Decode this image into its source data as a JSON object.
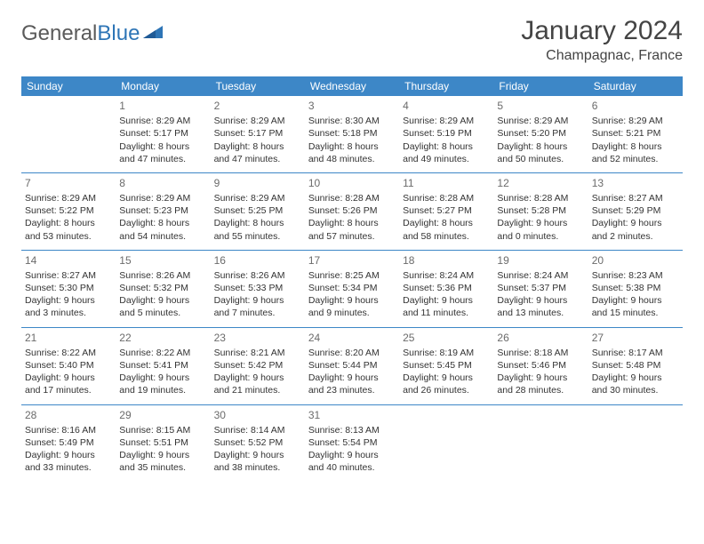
{
  "logo": {
    "part1": "General",
    "part2": "Blue"
  },
  "title": "January 2024",
  "location": "Champagnac, France",
  "colors": {
    "header_bg": "#3d87c7",
    "header_text": "#ffffff",
    "row_border": "#3d87c7",
    "body_text": "#333333",
    "daynum_text": "#6b6b6b",
    "logo_gray": "#5a5a5a",
    "logo_blue": "#2e75b6",
    "background": "#ffffff"
  },
  "typography": {
    "title_fontsize": 30,
    "location_fontsize": 16,
    "header_fontsize": 12,
    "cell_fontsize": 10.5,
    "daynum_fontsize": 12
  },
  "day_headers": [
    "Sunday",
    "Monday",
    "Tuesday",
    "Wednesday",
    "Thursday",
    "Friday",
    "Saturday"
  ],
  "weeks": [
    [
      {
        "num": "",
        "sunrise": "",
        "sunset": "",
        "daylight1": "",
        "daylight2": ""
      },
      {
        "num": "1",
        "sunrise": "Sunrise: 8:29 AM",
        "sunset": "Sunset: 5:17 PM",
        "daylight1": "Daylight: 8 hours",
        "daylight2": "and 47 minutes."
      },
      {
        "num": "2",
        "sunrise": "Sunrise: 8:29 AM",
        "sunset": "Sunset: 5:17 PM",
        "daylight1": "Daylight: 8 hours",
        "daylight2": "and 47 minutes."
      },
      {
        "num": "3",
        "sunrise": "Sunrise: 8:30 AM",
        "sunset": "Sunset: 5:18 PM",
        "daylight1": "Daylight: 8 hours",
        "daylight2": "and 48 minutes."
      },
      {
        "num": "4",
        "sunrise": "Sunrise: 8:29 AM",
        "sunset": "Sunset: 5:19 PM",
        "daylight1": "Daylight: 8 hours",
        "daylight2": "and 49 minutes."
      },
      {
        "num": "5",
        "sunrise": "Sunrise: 8:29 AM",
        "sunset": "Sunset: 5:20 PM",
        "daylight1": "Daylight: 8 hours",
        "daylight2": "and 50 minutes."
      },
      {
        "num": "6",
        "sunrise": "Sunrise: 8:29 AM",
        "sunset": "Sunset: 5:21 PM",
        "daylight1": "Daylight: 8 hours",
        "daylight2": "and 52 minutes."
      }
    ],
    [
      {
        "num": "7",
        "sunrise": "Sunrise: 8:29 AM",
        "sunset": "Sunset: 5:22 PM",
        "daylight1": "Daylight: 8 hours",
        "daylight2": "and 53 minutes."
      },
      {
        "num": "8",
        "sunrise": "Sunrise: 8:29 AM",
        "sunset": "Sunset: 5:23 PM",
        "daylight1": "Daylight: 8 hours",
        "daylight2": "and 54 minutes."
      },
      {
        "num": "9",
        "sunrise": "Sunrise: 8:29 AM",
        "sunset": "Sunset: 5:25 PM",
        "daylight1": "Daylight: 8 hours",
        "daylight2": "and 55 minutes."
      },
      {
        "num": "10",
        "sunrise": "Sunrise: 8:28 AM",
        "sunset": "Sunset: 5:26 PM",
        "daylight1": "Daylight: 8 hours",
        "daylight2": "and 57 minutes."
      },
      {
        "num": "11",
        "sunrise": "Sunrise: 8:28 AM",
        "sunset": "Sunset: 5:27 PM",
        "daylight1": "Daylight: 8 hours",
        "daylight2": "and 58 minutes."
      },
      {
        "num": "12",
        "sunrise": "Sunrise: 8:28 AM",
        "sunset": "Sunset: 5:28 PM",
        "daylight1": "Daylight: 9 hours",
        "daylight2": "and 0 minutes."
      },
      {
        "num": "13",
        "sunrise": "Sunrise: 8:27 AM",
        "sunset": "Sunset: 5:29 PM",
        "daylight1": "Daylight: 9 hours",
        "daylight2": "and 2 minutes."
      }
    ],
    [
      {
        "num": "14",
        "sunrise": "Sunrise: 8:27 AM",
        "sunset": "Sunset: 5:30 PM",
        "daylight1": "Daylight: 9 hours",
        "daylight2": "and 3 minutes."
      },
      {
        "num": "15",
        "sunrise": "Sunrise: 8:26 AM",
        "sunset": "Sunset: 5:32 PM",
        "daylight1": "Daylight: 9 hours",
        "daylight2": "and 5 minutes."
      },
      {
        "num": "16",
        "sunrise": "Sunrise: 8:26 AM",
        "sunset": "Sunset: 5:33 PM",
        "daylight1": "Daylight: 9 hours",
        "daylight2": "and 7 minutes."
      },
      {
        "num": "17",
        "sunrise": "Sunrise: 8:25 AM",
        "sunset": "Sunset: 5:34 PM",
        "daylight1": "Daylight: 9 hours",
        "daylight2": "and 9 minutes."
      },
      {
        "num": "18",
        "sunrise": "Sunrise: 8:24 AM",
        "sunset": "Sunset: 5:36 PM",
        "daylight1": "Daylight: 9 hours",
        "daylight2": "and 11 minutes."
      },
      {
        "num": "19",
        "sunrise": "Sunrise: 8:24 AM",
        "sunset": "Sunset: 5:37 PM",
        "daylight1": "Daylight: 9 hours",
        "daylight2": "and 13 minutes."
      },
      {
        "num": "20",
        "sunrise": "Sunrise: 8:23 AM",
        "sunset": "Sunset: 5:38 PM",
        "daylight1": "Daylight: 9 hours",
        "daylight2": "and 15 minutes."
      }
    ],
    [
      {
        "num": "21",
        "sunrise": "Sunrise: 8:22 AM",
        "sunset": "Sunset: 5:40 PM",
        "daylight1": "Daylight: 9 hours",
        "daylight2": "and 17 minutes."
      },
      {
        "num": "22",
        "sunrise": "Sunrise: 8:22 AM",
        "sunset": "Sunset: 5:41 PM",
        "daylight1": "Daylight: 9 hours",
        "daylight2": "and 19 minutes."
      },
      {
        "num": "23",
        "sunrise": "Sunrise: 8:21 AM",
        "sunset": "Sunset: 5:42 PM",
        "daylight1": "Daylight: 9 hours",
        "daylight2": "and 21 minutes."
      },
      {
        "num": "24",
        "sunrise": "Sunrise: 8:20 AM",
        "sunset": "Sunset: 5:44 PM",
        "daylight1": "Daylight: 9 hours",
        "daylight2": "and 23 minutes."
      },
      {
        "num": "25",
        "sunrise": "Sunrise: 8:19 AM",
        "sunset": "Sunset: 5:45 PM",
        "daylight1": "Daylight: 9 hours",
        "daylight2": "and 26 minutes."
      },
      {
        "num": "26",
        "sunrise": "Sunrise: 8:18 AM",
        "sunset": "Sunset: 5:46 PM",
        "daylight1": "Daylight: 9 hours",
        "daylight2": "and 28 minutes."
      },
      {
        "num": "27",
        "sunrise": "Sunrise: 8:17 AM",
        "sunset": "Sunset: 5:48 PM",
        "daylight1": "Daylight: 9 hours",
        "daylight2": "and 30 minutes."
      }
    ],
    [
      {
        "num": "28",
        "sunrise": "Sunrise: 8:16 AM",
        "sunset": "Sunset: 5:49 PM",
        "daylight1": "Daylight: 9 hours",
        "daylight2": "and 33 minutes."
      },
      {
        "num": "29",
        "sunrise": "Sunrise: 8:15 AM",
        "sunset": "Sunset: 5:51 PM",
        "daylight1": "Daylight: 9 hours",
        "daylight2": "and 35 minutes."
      },
      {
        "num": "30",
        "sunrise": "Sunrise: 8:14 AM",
        "sunset": "Sunset: 5:52 PM",
        "daylight1": "Daylight: 9 hours",
        "daylight2": "and 38 minutes."
      },
      {
        "num": "31",
        "sunrise": "Sunrise: 8:13 AM",
        "sunset": "Sunset: 5:54 PM",
        "daylight1": "Daylight: 9 hours",
        "daylight2": "and 40 minutes."
      },
      {
        "num": "",
        "sunrise": "",
        "sunset": "",
        "daylight1": "",
        "daylight2": ""
      },
      {
        "num": "",
        "sunrise": "",
        "sunset": "",
        "daylight1": "",
        "daylight2": ""
      },
      {
        "num": "",
        "sunrise": "",
        "sunset": "",
        "daylight1": "",
        "daylight2": ""
      }
    ]
  ]
}
